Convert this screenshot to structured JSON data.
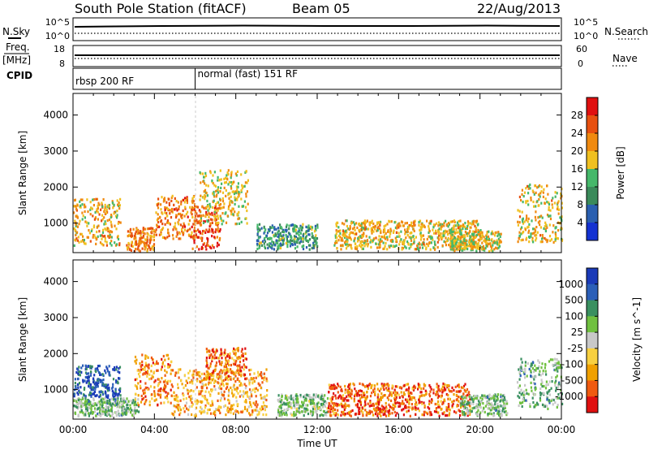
{
  "header": {
    "station": "South Pole Station (fitACF)",
    "beam": "Beam 05",
    "date": "22/Aug/2013"
  },
  "side_labels": {
    "nsky": "N.Sky",
    "freq_top": "Freq.",
    "freq_unit": "[MHz]",
    "cpid": "CPID",
    "nsearch": "N.Search",
    "nave": "Nave"
  },
  "cpid_segments": [
    {
      "label": "rbsp 200 RF",
      "start_hour": 0
    },
    {
      "label": "normal (fast) 151 RF",
      "start_hour": 6.0
    }
  ],
  "noise_panel": {
    "left_ticks": [
      "10^5",
      "10^0"
    ],
    "right_ticks": [
      "10^5",
      "10^0"
    ]
  },
  "freq_panel": {
    "left_ticks": [
      "18",
      "8"
    ],
    "right_ticks": [
      "60",
      "0"
    ]
  },
  "time_axis": {
    "label": "Time UT",
    "ticks": [
      "00:00",
      "04:00",
      "08:00",
      "12:00",
      "16:00",
      "20:00",
      "00:00"
    ],
    "range_hours": [
      0,
      24
    ]
  },
  "colors": {
    "power": [
      "#1432d2",
      "#2a5fb0",
      "#3a8a5a",
      "#45b86a",
      "#f0c020",
      "#f08a10",
      "#e85010",
      "#e01010"
    ],
    "velocity": [
      "#e01010",
      "#f05a10",
      "#f0a000",
      "#f8d040",
      "#c8c8c8",
      "#70c040",
      "#3a9060",
      "#2b5fb8",
      "#1a3ab8"
    ]
  },
  "chart_data": [
    {
      "type": "heatmap",
      "name": "power",
      "xlabel": "Time UT",
      "ylabel": "Slant Range [km]",
      "xlim_hours": [
        0,
        24
      ],
      "ylim_km": [
        180,
        4600
      ],
      "y_ticks": [
        "4000",
        "3000",
        "2000",
        "1000"
      ],
      "colorbar": {
        "label": "Power [dB]",
        "ticks": [
          "28",
          "24",
          "20",
          "16",
          "12",
          "8",
          "4"
        ],
        "range": [
          0,
          32
        ]
      },
      "features": [
        {
          "t0": 0.0,
          "t1": 2.3,
          "r0": 400,
          "r1": 1700,
          "level": 0.62
        },
        {
          "t0": 2.6,
          "t1": 4.0,
          "r0": 250,
          "r1": 900,
          "level": 0.7
        },
        {
          "t0": 4.0,
          "t1": 6.0,
          "r0": 600,
          "r1": 1800,
          "level": 0.72
        },
        {
          "t0": 5.8,
          "t1": 7.2,
          "r0": 300,
          "r1": 1500,
          "level": 0.82
        },
        {
          "t0": 6.2,
          "t1": 8.6,
          "r0": 1000,
          "r1": 2500,
          "level": 0.55
        },
        {
          "t0": 9.0,
          "t1": 12.0,
          "r0": 300,
          "r1": 1000,
          "level": 0.35
        },
        {
          "t0": 12.8,
          "t1": 20.0,
          "r0": 300,
          "r1": 1100,
          "level": 0.6
        },
        {
          "t0": 18.5,
          "t1": 21.0,
          "r0": 250,
          "r1": 800,
          "level": 0.55
        },
        {
          "t0": 21.8,
          "t1": 24.0,
          "r0": 500,
          "r1": 2100,
          "level": 0.6
        }
      ]
    },
    {
      "type": "heatmap",
      "name": "velocity",
      "xlabel": "Time UT",
      "ylabel": "Slant Range [km]",
      "xlim_hours": [
        0,
        24
      ],
      "ylim_km": [
        180,
        4600
      ],
      "y_ticks": [
        "4000",
        "3000",
        "2000",
        "1000"
      ],
      "colorbar": {
        "label": "Velocity [m s^-1]",
        "ticks": [
          "1000",
          "500",
          "100",
          "25",
          "-25",
          "-100",
          "-500",
          "-1000"
        ]
      },
      "features": [
        {
          "t0": 0.0,
          "t1": 2.3,
          "r0": 800,
          "r1": 1700,
          "level": 0.85
        },
        {
          "t0": 0.0,
          "t1": 3.2,
          "r0": 300,
          "r1": 800,
          "level": 0.62
        },
        {
          "t0": 3.0,
          "t1": 4.8,
          "r0": 600,
          "r1": 2000,
          "level": 0.25
        },
        {
          "t0": 4.8,
          "t1": 9.5,
          "r0": 300,
          "r1": 1600,
          "level": 0.3
        },
        {
          "t0": 6.5,
          "t1": 8.5,
          "r0": 1300,
          "r1": 2200,
          "level": 0.2
        },
        {
          "t0": 10.0,
          "t1": 12.5,
          "r0": 300,
          "r1": 900,
          "level": 0.6
        },
        {
          "t0": 12.5,
          "t1": 19.5,
          "r0": 300,
          "r1": 1200,
          "level": 0.18
        },
        {
          "t0": 19.0,
          "t1": 21.3,
          "r0": 300,
          "r1": 900,
          "level": 0.62
        },
        {
          "t0": 21.8,
          "t1": 24.0,
          "r0": 500,
          "r1": 1900,
          "level": 0.64
        }
      ]
    }
  ]
}
